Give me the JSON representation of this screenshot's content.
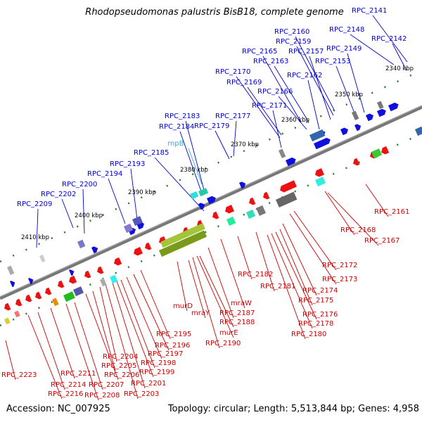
{
  "title": "Rhodopseudomonas palustris BisB18, complete genome",
  "footer": {
    "accession": "Accession: NC_007925",
    "summary": "Topology: circular; Length: 5,513,844 bp; Genes: 4,958"
  },
  "colors": {
    "forward_label": "#0000cc",
    "reverse_label": "#cc0000",
    "rna_label": "#33aadd",
    "backbone": "#777777",
    "tick": "#2a7a2a"
  },
  "kbp_marks": [
    "2340 kbp",
    "2350 kbp",
    "2360 kbp",
    "2370 kbp",
    "2380 kbp",
    "2390 kbp",
    "2400 kbp",
    "2410 kbp"
  ],
  "top_labels": [
    "RPC_2141",
    "RPC_2148",
    "RPC_2142",
    "RPC_2160",
    "RPC_2159",
    "RPC_2149",
    "RPC_2165",
    "RPC_2157",
    "RPC_2163",
    "RPC_2153",
    "RPC_2170",
    "RPC_2162",
    "RPC_2169",
    "RPC_2166",
    "RPC_2171",
    "RPC_2183",
    "RPC_2177",
    "RPC_2184",
    "RPC_2179",
    "rnpB",
    "RPC_2185",
    "RPC_2193",
    "RPC_2194",
    "RPC_2200",
    "RPC_2202",
    "RPC_2209"
  ],
  "bottom_labels": [
    "RPC_2161",
    "RPC_2168",
    "RPC_2167",
    "RPC_2172",
    "RPC_2173",
    "RPC_2182",
    "RPC_2174",
    "RPC_2181",
    "RPC_2175",
    "RPC_2176",
    "RPC_2178",
    "RPC_2180",
    "mraW",
    "RPC_2187",
    "murD",
    "mraY",
    "RPC_2188",
    "murE",
    "RPC_2190",
    "RPC_2195",
    "RPC_2196",
    "RPC_2197",
    "RPC_2198",
    "RPC_2204",
    "RPC_2199",
    "RPC_2205",
    "RPC_2206",
    "RPC_2201",
    "RPC_2203",
    "RPC_2211",
    "RPC_2207",
    "RPC_2208",
    "RPC_2214",
    "RPC_2216",
    "RPC_2223"
  ]
}
